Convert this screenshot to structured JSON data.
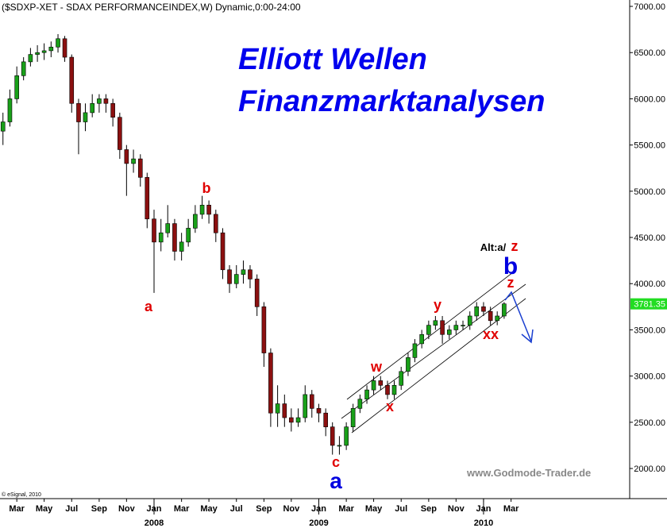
{
  "chart_data": {
    "type": "candlestick",
    "title": "($SDXP-XET - SDAX PERFORMANCEINDEX,W) Dynamic,0:00-24:00",
    "headline": [
      "Elliott Wellen",
      "Finanzmarktanalysen"
    ],
    "watermark": "www.Godmode-Trader.de",
    "copyright": "© eSignal, 2010",
    "up_color": "#19a019",
    "down_color": "#8b1010",
    "x": [
      2007.083,
      2007.125,
      2007.167,
      2007.208,
      2007.25,
      2007.292,
      2007.333,
      2007.375,
      2007.417,
      2007.458,
      2007.5,
      2007.542,
      2007.583,
      2007.625,
      2007.667,
      2007.708,
      2007.75,
      2007.792,
      2007.833,
      2007.875,
      2007.917,
      2007.958,
      2008,
      2008.042,
      2008.083,
      2008.125,
      2008.167,
      2008.208,
      2008.25,
      2008.292,
      2008.333,
      2008.375,
      2008.417,
      2008.458,
      2008.5,
      2008.542,
      2008.583,
      2008.625,
      2008.667,
      2008.708,
      2008.75,
      2008.792,
      2008.833,
      2008.875,
      2008.917,
      2008.958,
      2009,
      2009.042,
      2009.083,
      2009.125,
      2009.167,
      2009.208,
      2009.25,
      2009.292,
      2009.333,
      2009.375,
      2009.417,
      2009.458,
      2009.5,
      2009.542,
      2009.583,
      2009.625,
      2009.667,
      2009.708,
      2009.75,
      2009.792,
      2009.833,
      2009.875,
      2009.917,
      2009.958,
      2010,
      2010.042,
      2010.083,
      2010.125
    ],
    "open": [
      5650,
      5750,
      6000,
      6250,
      6400,
      6480,
      6500,
      6520,
      6560,
      6650,
      6450,
      5950,
      5750,
      5850,
      5950,
      6000,
      5950,
      5800,
      5450,
      5300,
      5350,
      5150,
      4700,
      4450,
      4550,
      4650,
      4350,
      4450,
      4600,
      4750,
      4850,
      4750,
      4550,
      4150,
      4000,
      4100,
      4150,
      4050,
      3750,
      3250,
      2600,
      2700,
      2550,
      2500,
      2550,
      2800,
      2650,
      2600,
      2450,
      2250,
      2250,
      2450,
      2650,
      2750,
      2850,
      2950,
      2900,
      2800,
      2900,
      3050,
      3200,
      3350,
      3450,
      3550,
      3600,
      3450,
      3500,
      3550,
      3550,
      3650,
      3750,
      3700,
      3600,
      3650
    ],
    "high": [
      5850,
      6100,
      6350,
      6450,
      6550,
      6580,
      6600,
      6620,
      6700,
      6680,
      6480,
      6000,
      5950,
      6050,
      6050,
      6050,
      6000,
      5850,
      5500,
      5450,
      5400,
      5200,
      4800,
      4700,
      4850,
      4700,
      4550,
      4700,
      4850,
      4950,
      4900,
      4800,
      4600,
      4200,
      4200,
      4250,
      4200,
      4100,
      3800,
      3300,
      2900,
      2800,
      2650,
      2650,
      2900,
      2850,
      2700,
      2650,
      2500,
      2350,
      2500,
      2700,
      2800,
      2900,
      3000,
      3000,
      2950,
      2950,
      3100,
      3250,
      3400,
      3500,
      3600,
      3650,
      3650,
      3550,
      3600,
      3600,
      3700,
      3800,
      3800,
      3750,
      3700,
      3800
    ],
    "low": [
      5500,
      5700,
      5950,
      6200,
      6350,
      6400,
      6420,
      6450,
      6500,
      6400,
      5850,
      5400,
      5650,
      5800,
      5850,
      5850,
      5700,
      5350,
      4950,
      5200,
      5050,
      4600,
      3900,
      4350,
      4500,
      4250,
      4250,
      4400,
      4550,
      4700,
      4650,
      4450,
      4050,
      3900,
      3950,
      4000,
      3950,
      3650,
      3100,
      2450,
      2450,
      2450,
      2400,
      2450,
      2500,
      2550,
      2500,
      2350,
      2150,
      2150,
      2200,
      2400,
      2600,
      2700,
      2800,
      2850,
      2750,
      2750,
      2850,
      3000,
      3150,
      3300,
      3400,
      3500,
      3350,
      3400,
      3450,
      3500,
      3500,
      3600,
      3650,
      3550,
      3550,
      3620
    ],
    "close": [
      5750,
      6000,
      6250,
      6400,
      6480,
      6500,
      6520,
      6560,
      6650,
      6450,
      5950,
      5750,
      5850,
      5950,
      6000,
      5950,
      5800,
      5450,
      5300,
      5350,
      5150,
      4700,
      4450,
      4550,
      4650,
      4350,
      4450,
      4600,
      4750,
      4850,
      4750,
      4550,
      4150,
      4000,
      4100,
      4150,
      4050,
      3750,
      3250,
      2600,
      2700,
      2550,
      2500,
      2550,
      2800,
      2650,
      2600,
      2450,
      2250,
      2250,
      2450,
      2650,
      2750,
      2850,
      2950,
      2900,
      2800,
      2900,
      3050,
      3200,
      3350,
      3450,
      3550,
      3600,
      3450,
      3500,
      3550,
      3550,
      3650,
      3750,
      3700,
      3600,
      3650,
      3781.35
    ],
    "xlim": [
      2007.065,
      2010.887
    ],
    "ylim": [
      1674,
      7069
    ],
    "yticks": [
      {
        "value": 2000,
        "label": "2000.00"
      },
      {
        "value": 2500,
        "label": "2500.00"
      },
      {
        "value": 3000,
        "label": "3000.00"
      },
      {
        "value": 3500,
        "label": "3500.00"
      },
      {
        "value": 4000,
        "label": "4000.00"
      },
      {
        "value": 4500,
        "label": "4500.00"
      },
      {
        "value": 5000,
        "label": "5000.00"
      },
      {
        "value": 5500,
        "label": "5500.00"
      },
      {
        "value": 6000,
        "label": "6000.00"
      },
      {
        "value": 6500,
        "label": "6500.00"
      },
      {
        "value": 7000,
        "label": "7000.00"
      }
    ],
    "xticks": [
      {
        "value": 2007.167,
        "label": "Mar"
      },
      {
        "value": 2007.333,
        "label": "May"
      },
      {
        "value": 2007.5,
        "label": "Jul"
      },
      {
        "value": 2007.667,
        "label": "Sep"
      },
      {
        "value": 2007.833,
        "label": "Nov"
      },
      {
        "value": 2008,
        "label": "Jan"
      },
      {
        "value": 2008.167,
        "label": "Mar"
      },
      {
        "value": 2008.333,
        "label": "May"
      },
      {
        "value": 2008.5,
        "label": "Jul"
      },
      {
        "value": 2008.667,
        "label": "Sep"
      },
      {
        "value": 2008.833,
        "label": "Nov"
      },
      {
        "value": 2009,
        "label": "Jan"
      },
      {
        "value": 2009.167,
        "label": "Mar"
      },
      {
        "value": 2009.333,
        "label": "May"
      },
      {
        "value": 2009.5,
        "label": "Jul"
      },
      {
        "value": 2009.667,
        "label": "Sep"
      },
      {
        "value": 2009.833,
        "label": "Nov"
      },
      {
        "value": 2010,
        "label": "Jan"
      },
      {
        "value": 2010.167,
        "label": "Mar"
      }
    ],
    "year_ticks": [
      2008,
      2009,
      2010
    ],
    "wave_labels": [
      "a",
      "b",
      "c",
      "a",
      "w",
      "x",
      "y",
      "xx",
      "z",
      "Alt:a/",
      "z",
      "b"
    ]
  }
}
